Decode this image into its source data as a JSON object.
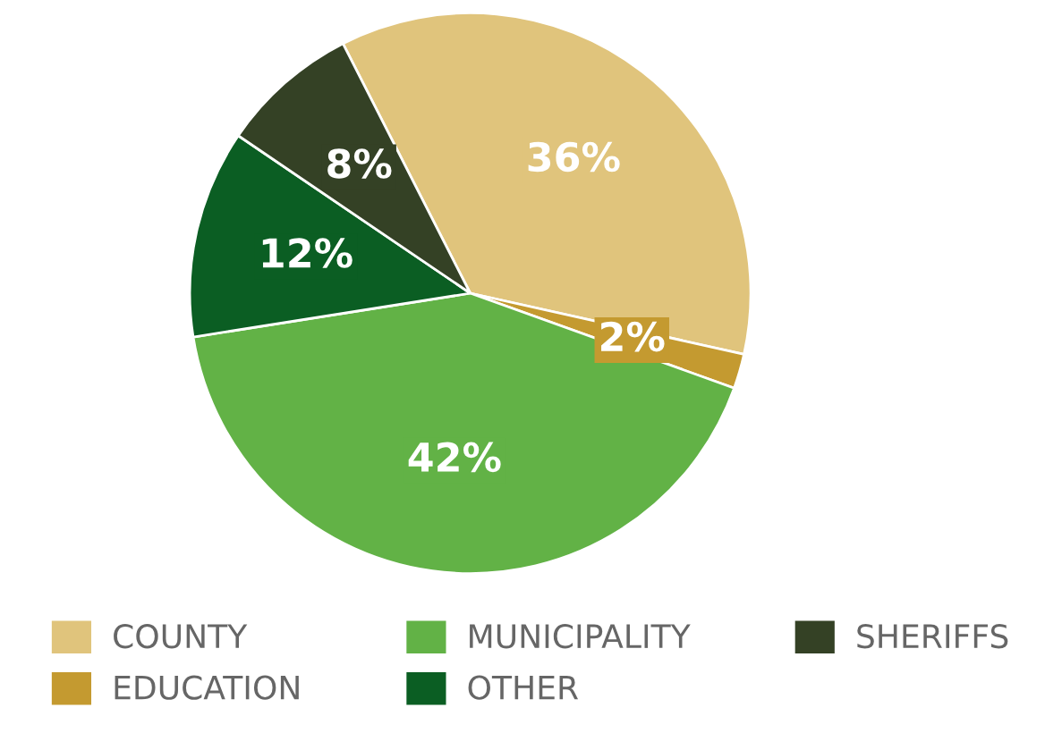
{
  "chart_data": {
    "type": "pie",
    "categories": [
      "COUNTY",
      "EDUCATION",
      "MUNICIPALITY",
      "OTHER",
      "SHERIFFS"
    ],
    "values": [
      36,
      2,
      42,
      12,
      8
    ],
    "value_labels": [
      "36%",
      "2%",
      "42%",
      "12%",
      "8%"
    ],
    "colors": [
      "#e0c47c",
      "#c49a30",
      "#62b246",
      "#0b5e23",
      "#344125"
    ],
    "legend": "bottom"
  }
}
